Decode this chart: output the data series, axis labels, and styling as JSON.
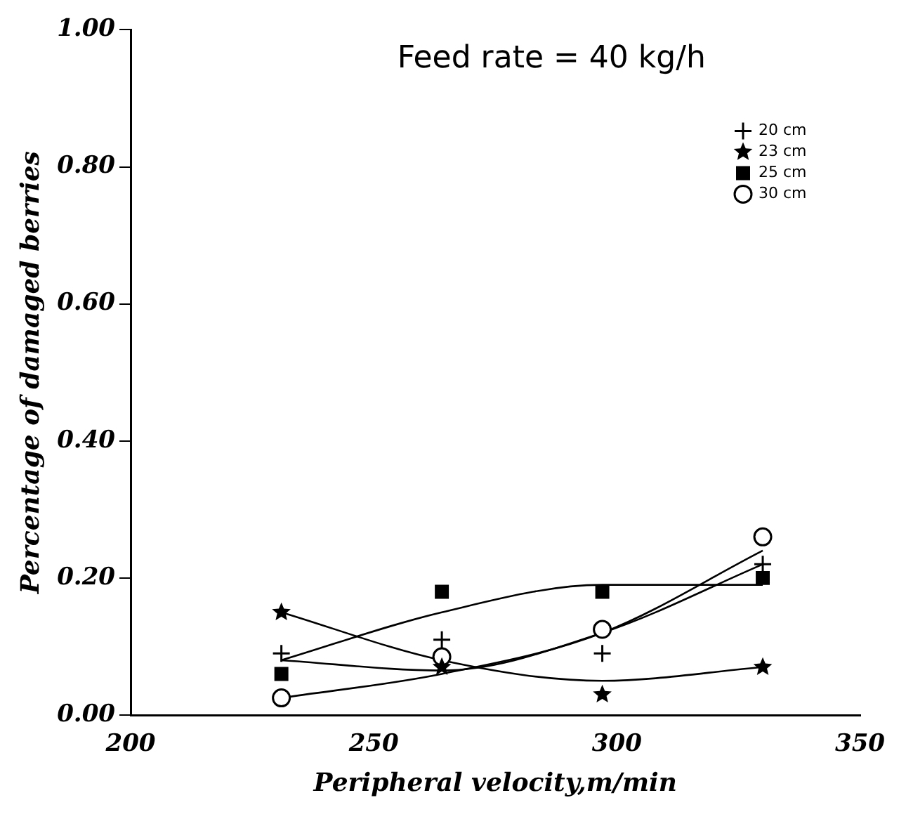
{
  "chart_data": {
    "type": "scatter",
    "title": "Feed rate = 40 kg/h",
    "xlabel": "Peripheral velocity,m/min",
    "ylabel": "Percentage of damaged berries",
    "x": [
      231,
      264,
      297,
      330
    ],
    "xlim": [
      200,
      350
    ],
    "xticks": [
      200,
      250,
      300,
      350
    ],
    "ylim": [
      0,
      1
    ],
    "yticks": [
      {
        "value": 0,
        "label": "0.00"
      },
      {
        "value": 0.2,
        "label": "0.20"
      },
      {
        "value": 0.4,
        "label": "0.40"
      },
      {
        "value": 0.6,
        "label": "0.60"
      },
      {
        "value": 0.8,
        "label": "0.80"
      },
      {
        "value": 1,
        "label": "1.00"
      }
    ],
    "grid": false,
    "legend": "top right",
    "series": [
      {
        "name": "20 cm",
        "color": "#000000",
        "marker": "cross",
        "values": [
          0.09,
          0.11,
          0.09,
          0.22
        ]
      },
      {
        "name": "23 cm",
        "color": "#000000",
        "marker": "star",
        "values": [
          0.15,
          0.07,
          0.03,
          0.07
        ]
      },
      {
        "name": "25 cm",
        "color": "#000000",
        "marker": "square",
        "values": [
          0.06,
          0.18,
          0.18,
          0.2
        ]
      },
      {
        "name": "30 cm",
        "color": "#000000",
        "marker": "circle",
        "values": [
          0.025,
          0.085,
          0.125,
          0.26
        ]
      },
      {
        "type": "line",
        "color": "#000000",
        "marker": "none",
        "x": [
          231,
          264,
          297,
          330
        ],
        "values": [
          0.08,
          0.065,
          0.12,
          0.22
        ]
      },
      {
        "type": "line",
        "color": "#000000",
        "marker": "none",
        "x": [
          231,
          264,
          297,
          330
        ],
        "values": [
          0.15,
          0.08,
          0.05,
          0.07
        ]
      },
      {
        "type": "line",
        "color": "#000000",
        "marker": "none",
        "x": [
          231,
          264,
          297,
          330
        ],
        "values": [
          0.08,
          0.15,
          0.19,
          0.19
        ]
      },
      {
        "type": "line",
        "color": "#000000",
        "marker": "none",
        "x": [
          231,
          264,
          297,
          330
        ],
        "values": [
          0.025,
          0.06,
          0.12,
          0.24
        ]
      }
    ]
  }
}
